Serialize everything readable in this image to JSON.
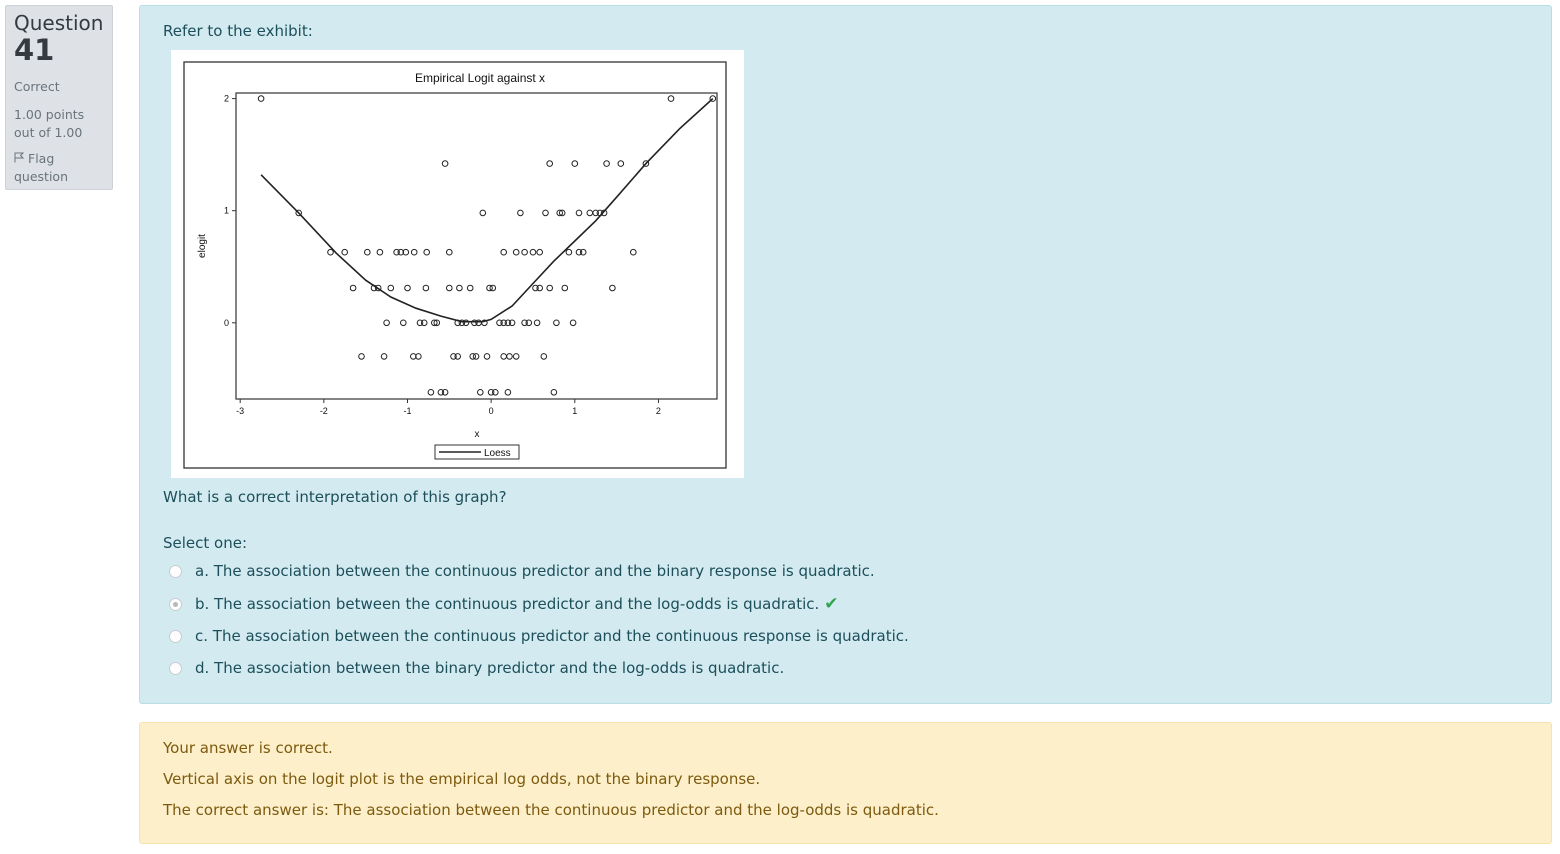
{
  "info": {
    "label": "Question",
    "number": "41",
    "state": "Correct",
    "grade": "1.00 points out of 1.00",
    "flag_label": "Flag question"
  },
  "question": {
    "intro": "Refer to the exhibit:",
    "prompt_text": "What is a correct interpretation of this graph?",
    "select_label": "Select one:",
    "options": [
      {
        "label": "a. The association between the continuous predictor and the binary response is quadratic.",
        "checked": false
      },
      {
        "label": "b. The association between the continuous predictor and the log-odds is quadratic.",
        "checked": true,
        "correct": true
      },
      {
        "label": "c. The association between the continuous predictor and the continuous response is quadratic.",
        "checked": false
      },
      {
        "label": "d. The association between the binary predictor and the log-odds is quadratic.",
        "checked": false
      }
    ]
  },
  "feedback": {
    "line1": "Your answer is correct.",
    "line2": "Vertical axis on the logit plot is the empirical log odds, not the binary response.",
    "line3": "The correct answer is: The association between the continuous predictor and the log-odds is quadratic."
  },
  "colors": {
    "question_bg": "#d3ebf0",
    "feedback_bg": "#fcefc9",
    "correct_check": "#2ea44f"
  },
  "chart_data": {
    "type": "scatter",
    "title": "Empirical Logit against x",
    "xlabel": "x",
    "ylabel": "elogit",
    "xlim": [
      -3.05,
      2.7
    ],
    "ylim": [
      -0.68,
      2.05
    ],
    "xticks": [
      -3,
      -2,
      -1,
      0,
      1,
      2
    ],
    "yticks": [
      0,
      1,
      2
    ],
    "legend": {
      "entries": [
        "Loess"
      ],
      "placement": "bottom"
    },
    "series": [
      {
        "marker": "open-circle",
        "points": [
          [
            -2.75,
            2.0
          ],
          [
            -0.55,
            1.42
          ],
          [
            0.7,
            1.42
          ],
          [
            1.0,
            1.42
          ],
          [
            1.38,
            1.42
          ],
          [
            1.55,
            1.42
          ],
          [
            1.85,
            1.42
          ],
          [
            2.15,
            2.0
          ],
          [
            2.65,
            2.0
          ],
          [
            -2.3,
            0.98
          ],
          [
            -0.1,
            0.98
          ],
          [
            0.35,
            0.98
          ],
          [
            0.65,
            0.98
          ],
          [
            0.82,
            0.98
          ],
          [
            0.85,
            0.98
          ],
          [
            1.05,
            0.98
          ],
          [
            1.18,
            0.98
          ],
          [
            1.25,
            0.98
          ],
          [
            1.3,
            0.98
          ],
          [
            1.35,
            0.98
          ],
          [
            -1.92,
            0.63
          ],
          [
            -1.75,
            0.63
          ],
          [
            -1.48,
            0.63
          ],
          [
            -1.33,
            0.63
          ],
          [
            -1.13,
            0.63
          ],
          [
            -1.08,
            0.63
          ],
          [
            -1.02,
            0.63
          ],
          [
            -0.92,
            0.63
          ],
          [
            -0.77,
            0.63
          ],
          [
            -0.5,
            0.63
          ],
          [
            0.15,
            0.63
          ],
          [
            0.3,
            0.63
          ],
          [
            0.4,
            0.63
          ],
          [
            0.5,
            0.63
          ],
          [
            0.58,
            0.63
          ],
          [
            0.93,
            0.63
          ],
          [
            1.05,
            0.63
          ],
          [
            1.1,
            0.63
          ],
          [
            1.7,
            0.63
          ],
          [
            -1.65,
            0.31
          ],
          [
            -1.4,
            0.31
          ],
          [
            -1.35,
            0.31
          ],
          [
            -1.2,
            0.31
          ],
          [
            -1.0,
            0.31
          ],
          [
            -0.78,
            0.31
          ],
          [
            -0.5,
            0.31
          ],
          [
            -0.38,
            0.31
          ],
          [
            -0.25,
            0.31
          ],
          [
            -0.02,
            0.31
          ],
          [
            0.02,
            0.31
          ],
          [
            0.53,
            0.31
          ],
          [
            0.58,
            0.31
          ],
          [
            0.7,
            0.31
          ],
          [
            0.88,
            0.31
          ],
          [
            1.45,
            0.31
          ],
          [
            -1.25,
            0.0
          ],
          [
            -1.05,
            0.0
          ],
          [
            -0.85,
            0.0
          ],
          [
            -0.8,
            0.0
          ],
          [
            -0.68,
            0.0
          ],
          [
            -0.65,
            0.0
          ],
          [
            -0.4,
            0.0
          ],
          [
            -0.35,
            0.0
          ],
          [
            -0.3,
            0.0
          ],
          [
            -0.2,
            0.0
          ],
          [
            -0.15,
            0.0
          ],
          [
            -0.08,
            0.0
          ],
          [
            0.1,
            0.0
          ],
          [
            0.15,
            0.0
          ],
          [
            0.2,
            0.0
          ],
          [
            0.25,
            0.0
          ],
          [
            0.4,
            0.0
          ],
          [
            0.45,
            0.0
          ],
          [
            0.55,
            0.0
          ],
          [
            0.78,
            0.0
          ],
          [
            0.98,
            0.0
          ],
          [
            -1.55,
            -0.3
          ],
          [
            -1.28,
            -0.3
          ],
          [
            -0.93,
            -0.3
          ],
          [
            -0.87,
            -0.3
          ],
          [
            -0.45,
            -0.3
          ],
          [
            -0.4,
            -0.3
          ],
          [
            -0.22,
            -0.3
          ],
          [
            -0.18,
            -0.3
          ],
          [
            -0.05,
            -0.3
          ],
          [
            0.15,
            -0.3
          ],
          [
            0.22,
            -0.3
          ],
          [
            0.3,
            -0.3
          ],
          [
            0.63,
            -0.3
          ],
          [
            -0.72,
            -0.62
          ],
          [
            -0.6,
            -0.62
          ],
          [
            -0.55,
            -0.62
          ],
          [
            -0.13,
            -0.62
          ],
          [
            0.0,
            -0.62
          ],
          [
            0.05,
            -0.62
          ],
          [
            0.2,
            -0.62
          ],
          [
            0.75,
            -0.62
          ]
        ]
      },
      {
        "name": "Loess",
        "type": "line",
        "points": [
          [
            -2.75,
            1.32
          ],
          [
            -2.3,
            0.98
          ],
          [
            -1.85,
            0.62
          ],
          [
            -1.5,
            0.38
          ],
          [
            -1.2,
            0.23
          ],
          [
            -0.9,
            0.13
          ],
          [
            -0.6,
            0.06
          ],
          [
            -0.35,
            0.01
          ],
          [
            -0.1,
            0.01
          ],
          [
            0.0,
            0.03
          ],
          [
            0.25,
            0.15
          ],
          [
            0.5,
            0.35
          ],
          [
            0.75,
            0.55
          ],
          [
            1.0,
            0.73
          ],
          [
            1.25,
            0.91
          ],
          [
            1.5,
            1.12
          ],
          [
            1.85,
            1.42
          ],
          [
            2.25,
            1.73
          ],
          [
            2.65,
            2.0
          ]
        ]
      }
    ]
  }
}
